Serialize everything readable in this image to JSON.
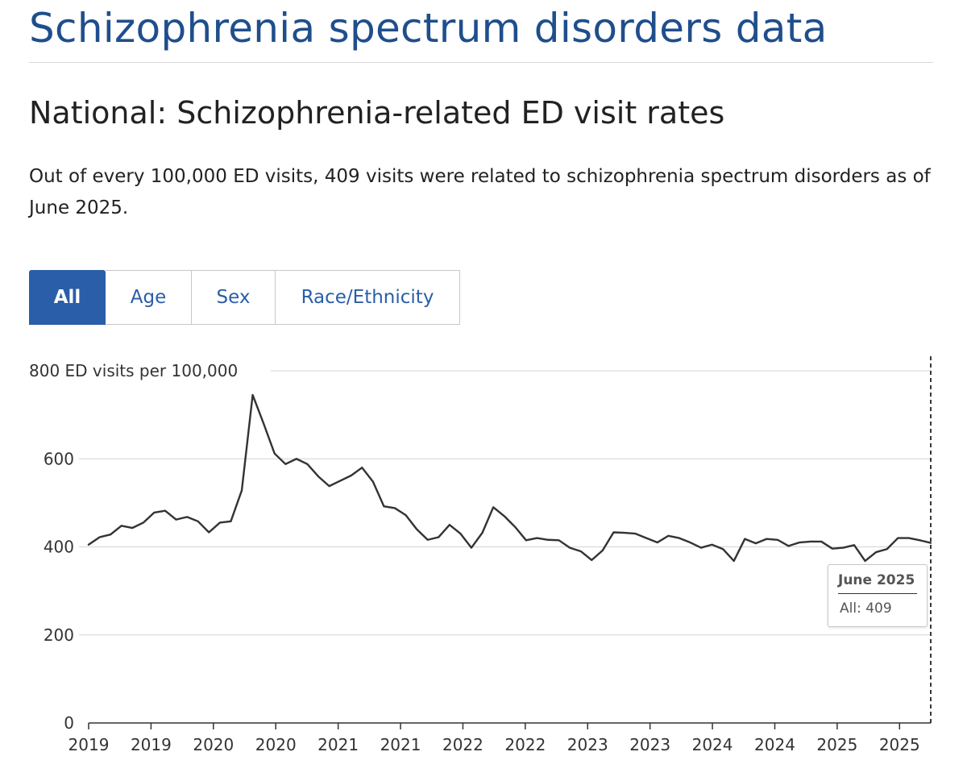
{
  "header": {
    "title": "Schizophrenia spectrum disorders data"
  },
  "section": {
    "title": "National: Schizophrenia-related ED visit rates",
    "description": "Out of every 100,000 ED visits, 409 visits were related to schizophrenia spectrum disorders as of June 2025."
  },
  "tabs": [
    {
      "label": "All",
      "active": true
    },
    {
      "label": "Age",
      "active": false
    },
    {
      "label": "Sex",
      "active": false
    },
    {
      "label": "Race/Ethnicity",
      "active": false
    }
  ],
  "tooltip": {
    "title": "June 2025",
    "series_label": "All: 409"
  },
  "chart_data": {
    "type": "line",
    "title": "",
    "ylabel": "ED visits per 100,000",
    "top_tick_label": "800 ED visits per 100,000",
    "ylim": [
      0,
      800
    ],
    "yticks": [
      0,
      200,
      400,
      600,
      800
    ],
    "grid": "horizontal",
    "xlim": [
      0,
      81
    ],
    "x_tick_positions": [
      0,
      6,
      12,
      18,
      24,
      30,
      36,
      42,
      48,
      54,
      60,
      66,
      72,
      78
    ],
    "x_tick_labels": [
      "2019",
      "2019",
      "2020",
      "2020",
      "2021",
      "2021",
      "2022",
      "2022",
      "2023",
      "2023",
      "2024",
      "2024",
      "2025",
      "2025"
    ],
    "hover_index": 81,
    "line_color": "#333333",
    "series": [
      {
        "name": "All",
        "values": [
          405,
          422,
          428,
          448,
          443,
          455,
          478,
          482,
          462,
          468,
          458,
          433,
          455,
          458,
          528,
          745,
          680,
          612,
          588,
          600,
          588,
          560,
          538,
          550,
          562,
          580,
          548,
          492,
          488,
          472,
          440,
          416,
          422,
          450,
          430,
          398,
          432,
          490,
          470,
          445,
          415,
          420,
          416,
          415,
          398,
          390,
          370,
          392,
          433,
          432,
          430,
          420,
          410,
          425,
          420,
          410,
          398,
          405,
          395,
          368,
          418,
          408,
          418,
          416,
          402,
          410,
          412,
          412,
          396,
          398,
          404,
          368,
          388,
          395,
          420,
          420,
          415,
          409
        ]
      }
    ]
  }
}
